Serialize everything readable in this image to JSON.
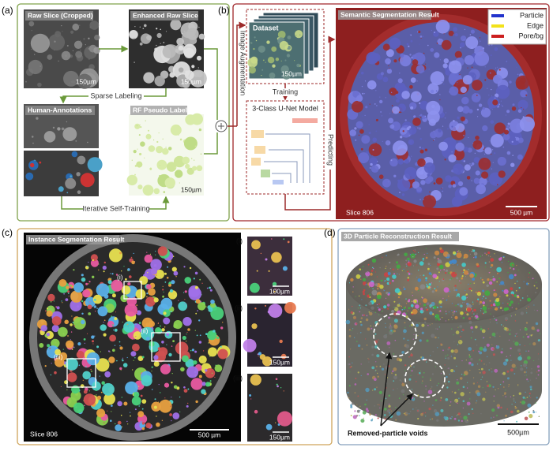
{
  "panel_a": {
    "label": "(a)",
    "raw_slice": {
      "title": "Raw Slice (Cropped)",
      "scale": "150µm"
    },
    "enhanced_slice": {
      "title": "Enhanced Raw Slice",
      "scale": "150µm"
    },
    "sparse_labeling": "Sparse Labeling",
    "human_annotations": {
      "title": "Human-Annotations"
    },
    "rf_labels": {
      "title": "RF Pseudo Labels",
      "scale": "150µm"
    },
    "iterative": "Iterative Self-Training"
  },
  "panel_b": {
    "label": "(b)",
    "dataset": {
      "title": "Dataset",
      "scale": "150µm"
    },
    "augmentation": "Image Augmentation",
    "training": "Training",
    "model": "3-Class U-Net Model",
    "predicting": "Predicting",
    "result": {
      "title": "Semantic Segmentation Result",
      "slice": "Slice 806",
      "scale": "500 µm"
    },
    "legend": [
      {
        "name": "Particle",
        "color": "#2233cc"
      },
      {
        "name": "Edge",
        "color": "#f2e21a"
      },
      {
        "name": "Pore/bg",
        "color": "#cc1f1f"
      }
    ]
  },
  "panel_c": {
    "label": "(c)",
    "title": "Instance Segmentation Result",
    "slice": "Slice 806",
    "scale": "500 µm",
    "regions": [
      "(i)",
      "(ii)",
      "(iii)"
    ],
    "insets": [
      {
        "label": "(i)",
        "scale": "100µm"
      },
      {
        "label": "(ii)",
        "scale": "150µm"
      },
      {
        "label": "(iii)",
        "scale": "150µm"
      }
    ]
  },
  "panel_d": {
    "label": "(d)",
    "title": "3D Particle Reconstruction Result",
    "annotation": "Removed-particle voids",
    "scale": "500µm"
  }
}
